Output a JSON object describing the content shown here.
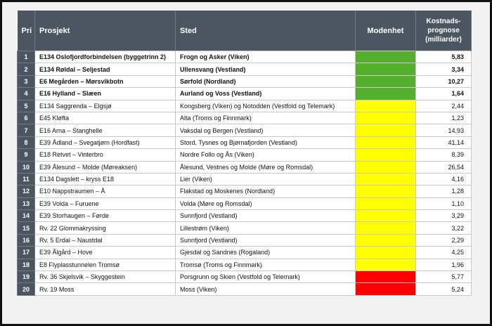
{
  "table": {
    "header": {
      "pri": "Pri",
      "project": "Prosjekt",
      "place": "Sted",
      "maturity": "Modenhet",
      "cost": [
        "Kostnads-",
        "prognose",
        "(milliarder)"
      ]
    },
    "rows": [
      {
        "pri": 1,
        "project": "E134 Oslofjordforbindelsen (byggetrinn 2)",
        "place": "Frogn og Asker (Viken)",
        "color": "#54b02c",
        "cost": "5,83",
        "bold": true
      },
      {
        "pri": 2,
        "project": "E134 Røldal – Seljestad",
        "place": "Ullensvang (Vestland)",
        "color": "#54b02c",
        "cost": "3,34",
        "bold": true
      },
      {
        "pri": 3,
        "project": "E6 Megården – Mørsvikbotn",
        "place": "Sørfold (Nordland)",
        "color": "#54b02c",
        "cost": "10,27",
        "bold": true
      },
      {
        "pri": 4,
        "project": "E16 Hylland – Slæen",
        "place": "Aurland og Voss (Vestland)",
        "color": "#54b02c",
        "cost": "1,64",
        "bold": true
      },
      {
        "pri": 5,
        "project": "E134 Saggrenda – Elgsjø",
        "place": "Kongsberg (Viken) og Notodden (Vestfold og Telemark)",
        "color": "#ffff00",
        "cost": "2,44",
        "bold": false
      },
      {
        "pri": 6,
        "project": "E45 Kløfta",
        "place": "Alta (Troms og Finnmark)",
        "color": "#ffff00",
        "cost": "1,23",
        "bold": false
      },
      {
        "pri": 7,
        "project": "E16 Arna – Stanghelle",
        "place": "Vaksdal og Bergen (Vestland)",
        "color": "#ffff00",
        "cost": "14,93",
        "bold": false
      },
      {
        "pri": 8,
        "project": "E39 Ådland – Svegatjørn (Hordfast)",
        "place": "Stord, Tysnes og Bjørnafjorden (Vestland)",
        "color": "#ffff00",
        "cost": "41,14",
        "bold": false
      },
      {
        "pri": 9,
        "project": "E18 Retvet – Vinterbro",
        "place": "Nordre Follo og Ås (Viken)",
        "color": "#ffff00",
        "cost": "8,39",
        "bold": false
      },
      {
        "pri": 10,
        "project": "E39 Ålesund – Molde (Møreaksen)",
        "place": "Ålesund, Vestnes og Molde (Møre og Romsdal)",
        "color": "#ffff00",
        "cost": "26,54",
        "bold": false
      },
      {
        "pri": 11,
        "project": "E134 Dagslett – kryss E18",
        "place": "Lier (Viken)",
        "color": "#ffff00",
        "cost": "4,16",
        "bold": false
      },
      {
        "pri": 12,
        "project": "E10 Nappstraumen – Å",
        "place": "Flakstad og Moskenes (Nordland)",
        "color": "#ffff00",
        "cost": "1,28",
        "bold": false
      },
      {
        "pri": 13,
        "project": "E39 Volda – Furuene",
        "place": "Volda (Møre og Romsdal)",
        "color": "#ffff00",
        "cost": "1,10",
        "bold": false
      },
      {
        "pri": 14,
        "project": "E39 Storhaugen – Førde",
        "place": "Sunnfjord (Vestland)",
        "color": "#ffff00",
        "cost": "3,29",
        "bold": false
      },
      {
        "pri": 15,
        "project": "Rv. 22 Glommakryssing",
        "place": "Lillestrøm (Viken)",
        "color": "#ffff00",
        "cost": "3,22",
        "bold": false
      },
      {
        "pri": 16,
        "project": "Rv. 5 Erdal – Naustdal",
        "place": "Sunnfjord (Vestland)",
        "color": "#ffff00",
        "cost": "2,29",
        "bold": false
      },
      {
        "pri": 17,
        "project": "E39 Ålgård – Hove",
        "place": "Gjesdal og Sandnes (Rogaland)",
        "color": "#ffff00",
        "cost": "4,25",
        "bold": false
      },
      {
        "pri": 18,
        "project": "E8 Flyplasstunnelen Tromsø",
        "place": "Tromsø (Troms og Finnmark)",
        "color": "#ffff00",
        "cost": "1,96",
        "bold": false
      },
      {
        "pri": 19,
        "project": "Rv. 36 Skjelsvik – Skyggestein",
        "place": "Porsgrunn og Skien (Vestfold og Telemark)",
        "color": "#ff0000",
        "cost": "5,77",
        "bold": false
      },
      {
        "pri": 20,
        "project": "Rv. 19 Moss",
        "place": "Moss (Viken)",
        "color": "#ff0000",
        "cost": "5,24",
        "bold": false
      }
    ]
  }
}
